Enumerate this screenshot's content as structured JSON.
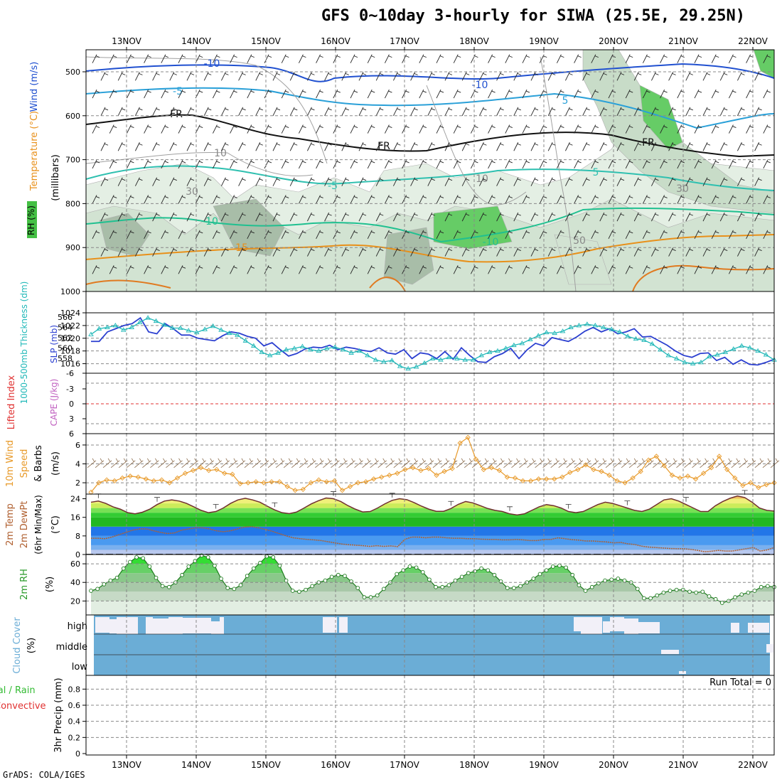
{
  "title": "GFS 0~10day 3-hourly for SIWA (25.5E, 29.25N)",
  "credit": "GrADS: COLA/IGES",
  "colors": {
    "temp_warm": "#e8901a",
    "temp_cool": "#2fc0b0",
    "wind_blue": "#2050d0",
    "rh_green": "#44c044",
    "cloud": "#6badd6",
    "slp": "#2b3fd0",
    "thickness": "#20b8b8",
    "wind10": "#e89a2a",
    "dew": "#b06030",
    "lifted": "#e03030",
    "cape": "#c060c0"
  },
  "chart_data": [
    {
      "type": "heatmap",
      "name_hint": "upper-air",
      "x_dates": [
        "13NOV",
        "14NOV",
        "15NOV",
        "16NOV",
        "17NOV",
        "18NOV",
        "19NOV",
        "20NOV",
        "21NOV",
        "22NOV"
      ],
      "y_ticks": [
        "500",
        "600",
        "700",
        "800",
        "900",
        "1000"
      ],
      "ylabel_parts": [
        "RH (%)",
        "Temperature (°C)",
        "Wind (m/s)"
      ],
      "ylabel_sub": "(millibars)",
      "contour_labels": [
        "-10",
        "-10",
        "-5",
        "5",
        "FR",
        "FR",
        "FR",
        "-5",
        "5",
        "10",
        "-10",
        "15",
        "30",
        "30",
        "10",
        "10",
        "50"
      ]
    },
    {
      "type": "line",
      "name_hint": "slp-thickness",
      "left_label": "1000-500mb Thickness (dm)",
      "right_label": "SLP (mb)",
      "left_ticks": [
        "566",
        "564",
        "562",
        "560",
        "558"
      ],
      "right_ticks": [
        "1024",
        "1022",
        "1020",
        "1018",
        "1016"
      ],
      "slp_ylim": [
        1014.5,
        1024
      ],
      "slp": [
        1019.5,
        1019.5,
        1021,
        1021.5,
        1022,
        1022.3,
        1023.2,
        1021,
        1020.7,
        1022.3,
        1021.5,
        1020.5,
        1020.5,
        1020,
        1019.8,
        1019.6,
        1020.4,
        1021,
        1020.8,
        1020.3,
        1020,
        1018.8,
        1019.3,
        1018.2,
        1017.2,
        1017.6,
        1018.3,
        1018.6,
        1018.5,
        1018.9,
        1018.2,
        1018.6,
        1018.4,
        1018.1,
        1017.9,
        1018.5,
        1017.7,
        1017.5,
        1018.2,
        1016.8,
        1017.7,
        1017.5,
        1016.8,
        1017.9,
        1016.7,
        1018.5,
        1017.3,
        1016.3,
        1016.2,
        1017.1,
        1017.6,
        1018.4,
        1016.8,
        1018.2,
        1019.2,
        1018.8,
        1020.1,
        1019.8,
        1019.5,
        1020.2,
        1021.1,
        1021.7,
        1021,
        1021.5,
        1020.7,
        1021,
        1021.5,
        1020.2,
        1020.3,
        1019.6,
        1018.9,
        1018,
        1017.3,
        1017,
        1017.6,
        1017.7,
        1016.5,
        1017,
        1015.9,
        1016.6,
        1015.9,
        1015.8,
        1016.2,
        1016.7
      ],
      "thickness": [
        1020.6,
        1021.5,
        1021.7,
        1022,
        1021.3,
        1021.7,
        1022.5,
        1023.2,
        1022.7,
        1022.1,
        1021.6,
        1021.6,
        1021.2,
        1020.9,
        1021.4,
        1021.9,
        1021.3,
        1020.8,
        1020.5,
        1019.6,
        1018.8,
        1017.8,
        1017.3,
        1017.7,
        1018.2,
        1018.4,
        1018.7,
        1018.2,
        1018.0,
        1018.4,
        1018.6,
        1018.2,
        1017.7,
        1018.0,
        1017.3,
        1016.6,
        1016.3,
        1016.5,
        1015.6,
        1015.2,
        1015.5,
        1016.1,
        1016.8,
        1016.6,
        1017.0,
        1016.8,
        1016.6,
        1016.6,
        1017.3,
        1017.8,
        1018.0,
        1018.4,
        1018.9,
        1019.2,
        1019.8,
        1020.4,
        1020.9,
        1020.8,
        1021.1,
        1021.7,
        1022.0,
        1022.2,
        1022.0,
        1021.7,
        1021.4,
        1021.0,
        1020.3,
        1019.9,
        1019.7,
        1019.1,
        1018.2,
        1017.3,
        1016.8,
        1016.2,
        1016.0,
        1016.2,
        1017.1,
        1017.4,
        1017.8,
        1018.3,
        1018.8,
        1018.5,
        1018.0,
        1017.4,
        1016.6
      ]
    },
    {
      "type": "line",
      "name_hint": "lifted-cape",
      "left_label": "Lifted Index",
      "right_label": "CAPE (J/kg)",
      "left_ticks": [
        "-6",
        "-3",
        "0",
        "3",
        "6"
      ],
      "zero_line": 0
    },
    {
      "type": "line",
      "name_hint": "wind10m",
      "ylabel_parts": [
        "10m Wind",
        "Speed",
        "& Barbs"
      ],
      "yunit": "(m/s)",
      "y_ticks": [
        "6",
        "4",
        "2"
      ],
      "ylim": [
        0.8,
        7.2
      ],
      "values": [
        1.0,
        2.0,
        2.3,
        2.2,
        2.5,
        2.7,
        2.6,
        2.4,
        2.2,
        2.3,
        2.0,
        2.5,
        3.0,
        3.3,
        3.6,
        3.3,
        3.4,
        3.0,
        2.9,
        1.9,
        2.0,
        2.1,
        2.0,
        2.1,
        2.1,
        1.6,
        1.2,
        1.3,
        2.0,
        2.3,
        2.1,
        2.2,
        1.2,
        1.6,
        2.0,
        2.1,
        2.4,
        2.6,
        2.8,
        3.0,
        3.4,
        3.6,
        3.3,
        3.5,
        2.8,
        3.2,
        3.5,
        6.2,
        6.8,
        4.5,
        3.4,
        3.6,
        3.3,
        2.6,
        2.5,
        2.2,
        2.2,
        2.4,
        2.4,
        2.4,
        2.6,
        3.1,
        3.4,
        3.9,
        3.4,
        3.2,
        2.8,
        2.2,
        2.0,
        2.5,
        3.2,
        4.4,
        4.8,
        3.8,
        2.8,
        2.5,
        2.7,
        2.4,
        3.0,
        3.6,
        4.8,
        3.4,
        2.5,
        1.7,
        2.0,
        1.5,
        1.8,
        2.0
      ]
    },
    {
      "type": "area",
      "name_hint": "temp-dewpoint",
      "ylabel_parts": [
        "2m Temp",
        "2m DewPt",
        "(6hr Min/Max)"
      ],
      "yunit": "(°C)",
      "y_ticks": [
        "24",
        "16",
        "8",
        "0"
      ],
      "ylim": [
        0,
        26
      ],
      "temp": [
        22.5,
        23,
        22,
        20.5,
        19.5,
        18,
        17.5,
        18.2,
        19.5,
        21.5,
        23,
        23.5,
        23,
        22,
        20.5,
        19,
        18,
        18.5,
        20,
        22,
        23.5,
        24.2,
        23.5,
        22.5,
        20.8,
        19.2,
        18,
        17.6,
        18.3,
        20,
        21.8,
        23.2,
        24.3,
        24,
        22.8,
        21,
        19.5,
        18.3,
        18.5,
        20,
        21.8,
        23.3,
        24,
        23.6,
        22.3,
        20.8,
        19.5,
        18.6,
        18.6,
        19.8,
        21.6,
        22.8,
        22.2,
        21,
        19.8,
        19,
        18.5,
        17.5,
        17,
        17.5,
        19,
        20.5,
        21.5,
        21,
        20,
        18.5,
        18,
        18.5,
        20,
        21.5,
        22.5,
        22,
        21,
        20,
        19,
        18.5,
        19.5,
        21.5,
        23.5,
        24,
        23,
        21.5,
        20,
        18.5,
        18.5,
        21,
        22.8,
        24.2,
        25.2,
        24.5,
        22.5,
        20,
        19,
        18.7
      ],
      "dew": [
        7.0,
        7.0,
        6.8,
        7.5,
        8.5,
        9.5,
        10.5,
        11.0,
        11.0,
        10.2,
        9.5,
        9.0,
        9.3,
        10.5,
        11.0,
        11.5,
        11.5,
        11.0,
        10.2,
        9.8,
        10.2,
        11.0,
        11.8,
        12.0,
        11.5,
        10.8,
        10.0,
        9.0,
        8.0,
        7.2,
        6.8,
        6.5,
        6.3,
        6.0,
        5.5,
        5.0,
        4.5,
        4.2,
        4.0,
        3.8,
        3.5,
        3.8,
        3.5,
        3.7,
        3.4,
        6.5,
        7.5,
        7.5,
        7.2,
        7.5,
        7.5,
        7.2,
        7.0,
        7.0,
        6.8,
        6.8,
        6.6,
        6.5,
        6.5,
        6.3,
        6.3,
        6.5,
        6.3,
        6.0,
        6.0,
        6.5,
        6.5,
        7.2,
        6.8,
        6.4,
        6.2,
        5.8,
        5.8,
        5.6,
        5.4,
        5.0,
        5.2,
        4.6,
        4.3,
        3.6,
        3.2,
        3.0,
        2.8,
        2.6,
        2.5,
        2.5,
        2.2,
        1.8,
        1.2,
        1.4,
        1.8,
        1.5,
        1.5,
        2.0,
        2.5,
        3.0,
        1.5,
        2.0,
        3.0
      ]
    },
    {
      "type": "area",
      "name_hint": "rh2m",
      "ylabel": "2m RH",
      "yunit": "(%)",
      "y_ticks": [
        "60",
        "40",
        "20"
      ],
      "ylim": [
        5,
        70
      ],
      "values": [
        31,
        33,
        38,
        42,
        45,
        55,
        62,
        67,
        66,
        57,
        45,
        36,
        35,
        40,
        48,
        57,
        63,
        69,
        67,
        58,
        44,
        34,
        33,
        37,
        47,
        55,
        61,
        68,
        67,
        58,
        42,
        31,
        30,
        32,
        36,
        40,
        42,
        46,
        48,
        47,
        41,
        34,
        24,
        24,
        26,
        33,
        40,
        49,
        53,
        57,
        56,
        51,
        43,
        35,
        35,
        37,
        42,
        46,
        50,
        52,
        55,
        53,
        48,
        41,
        34,
        34,
        36,
        40,
        44,
        49,
        53,
        57,
        58,
        56,
        48,
        37,
        31,
        35,
        39,
        42,
        43,
        44,
        42,
        40,
        33,
        23,
        23,
        26,
        29,
        31,
        32,
        32,
        30,
        29,
        30,
        25,
        22,
        18,
        20,
        24,
        27,
        29,
        31,
        35,
        36,
        35
      ]
    },
    {
      "type": "bar",
      "name_hint": "cloud-cover",
      "ylabel": "Cloud Cover",
      "yunit": "(%)",
      "layers": [
        "high",
        "middle",
        "low"
      ]
    },
    {
      "type": "bar",
      "name_hint": "precip",
      "ylabel_left_parts": [
        "Total / Rain",
        "Convective"
      ],
      "ylabel": "3hr Precip (mm)",
      "y_ticks": [
        "0.8",
        "0.6",
        "0.4",
        "0.2",
        "0"
      ],
      "ylim": [
        0,
        0.9
      ],
      "run_total": "Run Total = 0",
      "x_dates": [
        "13NOV",
        "14NOV",
        "15NOV",
        "16NOV",
        "17NOV",
        "18NOV",
        "19NOV",
        "20NOV",
        "21NOV",
        "22NOV"
      ]
    }
  ]
}
